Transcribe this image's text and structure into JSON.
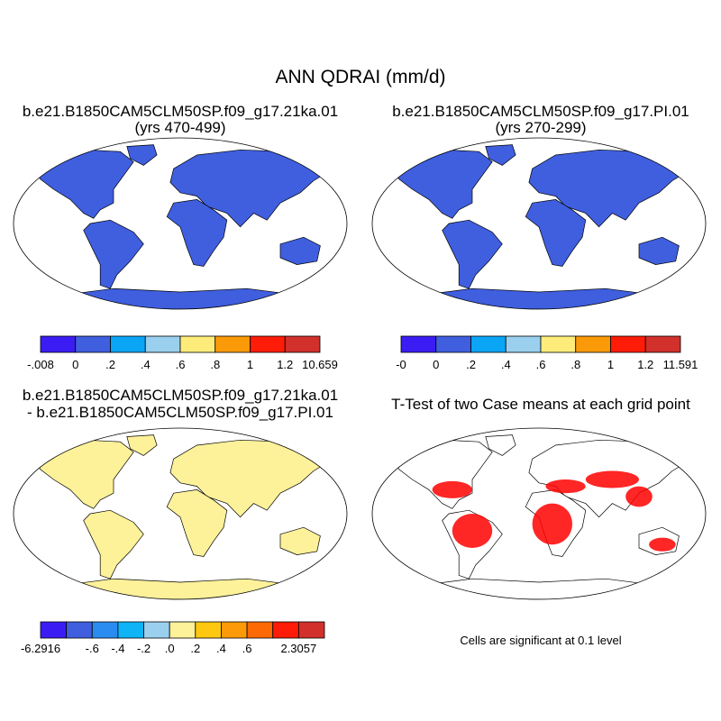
{
  "title": "ANN QDRAI (mm/d)",
  "panels": [
    {
      "title_line1": "b.e21.B1850CAM5CLM50SP.f09_g17.21ka.01",
      "title_line2": "(yrs 470-499)",
      "colorbar": {
        "colors": [
          "#3b1df4",
          "#3f5fdf",
          "#0ba5f6",
          "#9ad0ee",
          "#fdec7a",
          "#fb9a08",
          "#fd1c08",
          "#d1302b"
        ],
        "labels": [
          "-.008",
          "0",
          ".2",
          ".4",
          ".6",
          ".8",
          "1",
          "1.2",
          "10.659"
        ]
      }
    },
    {
      "title_line1": "b.e21.B1850CAM5CLM50SP.f09_g17.PI.01",
      "title_line2": "(yrs 270-299)",
      "colorbar": {
        "colors": [
          "#3b1df4",
          "#3f5fdf",
          "#0ba5f6",
          "#9ad0ee",
          "#fdec7a",
          "#fb9a08",
          "#fd1c08",
          "#d1302b"
        ],
        "labels": [
          "-0",
          "0",
          ".2",
          ".4",
          ".6",
          ".8",
          "1",
          "1.2",
          "11.591"
        ]
      }
    },
    {
      "title_line1": "b.e21.B1850CAM5CLM50SP.f09_g17.21ka.01",
      "title_line2": "- b.e21.B1850CAM5CLM50SP.f09_g17.PI.01",
      "colorbar": {
        "colors": [
          "#3b1df4",
          "#3f5fdf",
          "#2a8cf0",
          "#0fb4f6",
          "#9ad0ee",
          "#fdf19a",
          "#fec810",
          "#fd9a08",
          "#fd6a05",
          "#fd1c08",
          "#d1302b"
        ],
        "labels": [
          "-6.2916",
          "",
          "-.6",
          "-.4",
          "-.2",
          ".0",
          ".2",
          ".4",
          ".6",
          "",
          "2.3057"
        ]
      }
    },
    {
      "title_line1": "T-Test of two Case means at each grid point",
      "note": "Cells are significant at 0.1 level"
    }
  ],
  "colors": {
    "ocean_fill": "#3f5fdf",
    "land_fill_diff": "#fdf19a",
    "significant_cells": "#ff0000"
  }
}
